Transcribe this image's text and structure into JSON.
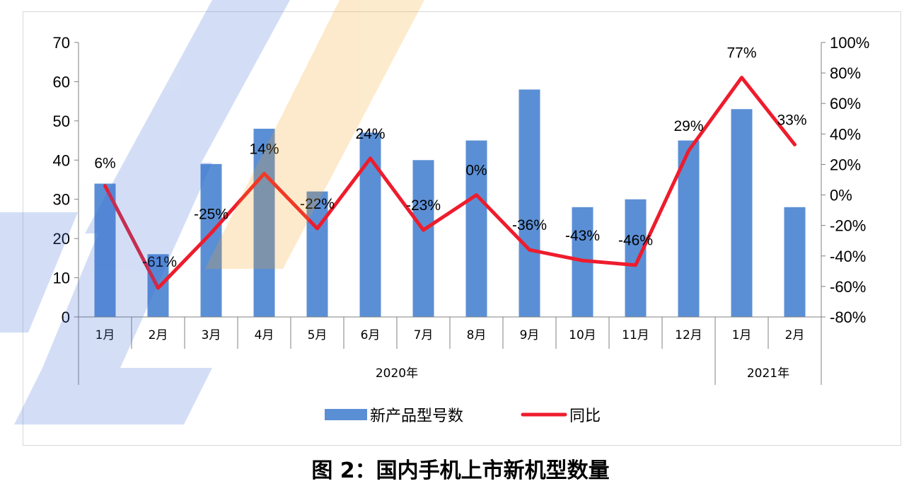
{
  "caption": "图 2：国内手机上市新机型数量",
  "chart_data": {
    "type": "bar",
    "categories": [
      "1月",
      "2月",
      "3月",
      "4月",
      "5月",
      "6月",
      "7月",
      "8月",
      "9月",
      "10月",
      "11月",
      "12月",
      "1月",
      "2月"
    ],
    "groups": [
      {
        "label": "2020年",
        "count": 12
      },
      {
        "label": "2021年",
        "count": 2
      }
    ],
    "series": [
      {
        "name": "新产品型号数",
        "type": "bar",
        "axis": "left",
        "color": "#5B8FD5",
        "values": [
          34,
          16,
          39,
          48,
          32,
          47,
          40,
          45,
          58,
          28,
          30,
          45,
          53,
          28
        ]
      },
      {
        "name": "同比",
        "type": "line",
        "axis": "right",
        "color": "#EE1C2C",
        "values": [
          6,
          -61,
          -25,
          14,
          -22,
          24,
          -23,
          0,
          -36,
          -43,
          -46,
          29,
          77,
          33
        ],
        "labels": [
          "6%",
          "-61%",
          "-25%",
          "14%",
          "-22%",
          "24%",
          "-23%",
          "0%",
          "-36%",
          "-43%",
          "-46%",
          "29%",
          "77%",
          "33%"
        ]
      }
    ],
    "y_left": {
      "min": 0,
      "max": 70,
      "ticks": [
        "0",
        "10",
        "20",
        "30",
        "40",
        "50",
        "60",
        "70"
      ]
    },
    "y_right": {
      "min": -80,
      "max": 100,
      "ticks": [
        "-80%",
        "-60%",
        "-40%",
        "-20%",
        "0%",
        "20%",
        "40%",
        "60%",
        "80%",
        "100%"
      ]
    },
    "grid": false,
    "legend_position": "bottom"
  }
}
